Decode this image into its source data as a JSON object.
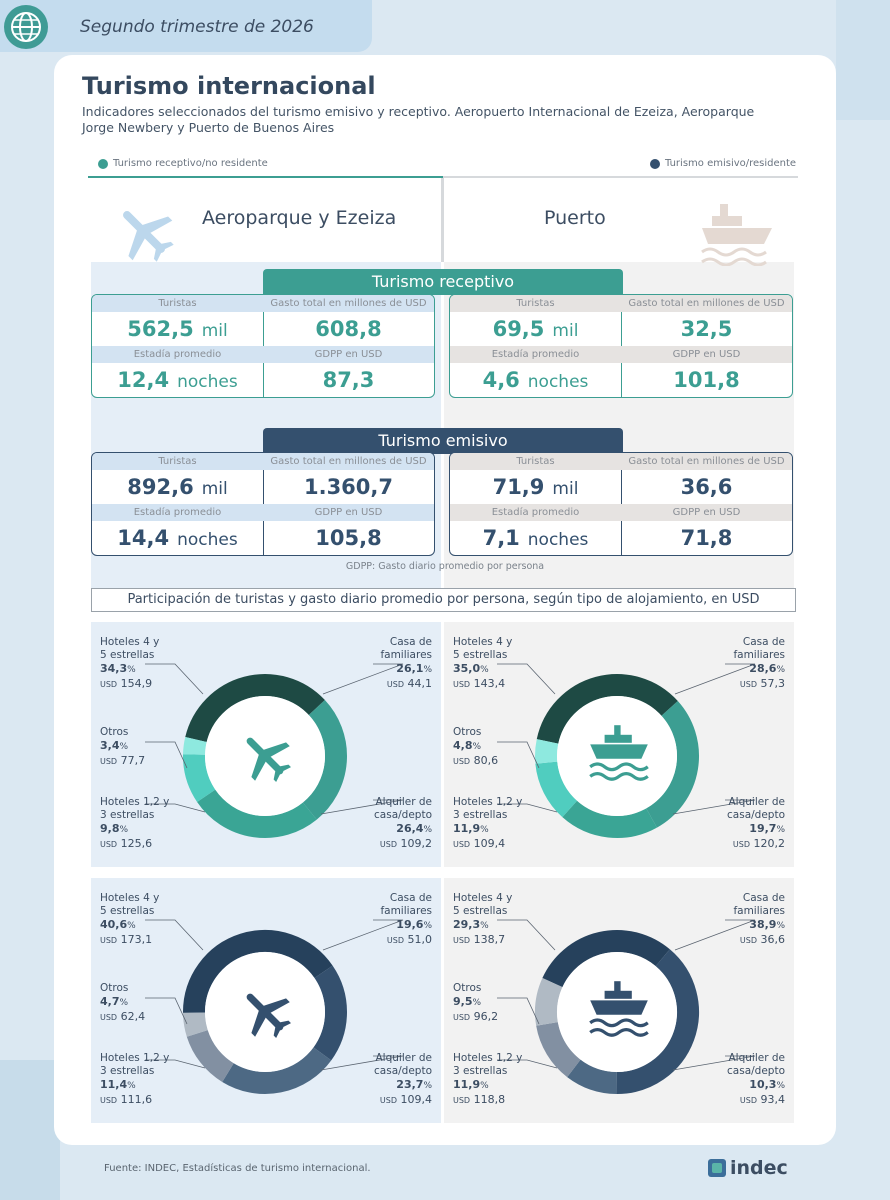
{
  "header": {
    "period": "Segundo trimestre de 2026"
  },
  "title": "Turismo internacional",
  "subtitle": "Indicadores seleccionados del turismo emisivo y receptivo. Aeropuerto Internacional de Ezeiza, Aeroparque Jorge Newbery y Puerto de Buenos Aires",
  "legend": {
    "receptivo": "Turismo receptivo/no residente",
    "emisivo": "Turismo emisivo/residente"
  },
  "colors": {
    "receptivo": "#3c9e92",
    "emisivo": "#34506e",
    "teal_light": "#5fd3c9",
    "gray": "#a7aeb6"
  },
  "locations": {
    "left": "Aeroparque y Ezeiza",
    "right": "Puerto"
  },
  "sections": {
    "receptivo": "Turismo receptivo",
    "emisivo": "Turismo emisivo"
  },
  "labels": {
    "turistas": "Turistas",
    "gasto": "Gasto total en millones de USD",
    "estadia": "Estadía promedio",
    "gdpp": "GDPP en USD",
    "mil": "mil",
    "noches": "noches"
  },
  "receptivo": {
    "aero": {
      "turistas": "562,5",
      "gasto": "608,8",
      "estadia": "12,4",
      "gdpp": "87,3"
    },
    "puerto": {
      "turistas": "69,5",
      "gasto": "32,5",
      "estadia": "4,6",
      "gdpp": "101,8"
    }
  },
  "emisivo": {
    "aero": {
      "turistas": "892,6",
      "gasto": "1.360,7",
      "estadia": "14,4",
      "gdpp": "105,8"
    },
    "puerto": {
      "turistas": "71,9",
      "gasto": "36,6",
      "estadia": "7,1",
      "gdpp": "71,8"
    }
  },
  "note": "GDPP: Gasto diario promedio por persona",
  "participation_title": "Participación de turistas y gasto diario promedio por persona, según tipo de alojamiento, en USD",
  "cat_labels": {
    "hoteles45": [
      "Hoteles 4 y",
      "5 estrellas"
    ],
    "casa_fam": [
      "Casa de",
      "familiares"
    ],
    "otros": [
      "Otros"
    ],
    "hoteles123": [
      "Hoteles 1,2 y",
      "3 estrellas"
    ],
    "alquiler": [
      "Alquiler de",
      "casa/depto"
    ]
  },
  "usd_label": "USD",
  "chart_data": [
    {
      "type": "pie",
      "title": "",
      "group": "Turismo receptivo - Aeroparque y Ezeiza",
      "categories": [
        "Hoteles 4 y 5 estrellas",
        "Casa de familiares",
        "Alquiler de casa/depto",
        "Hoteles 1,2 y 3 estrellas",
        "Otros"
      ],
      "values": [
        34.3,
        26.1,
        26.4,
        9.8,
        3.4
      ],
      "pct_text": [
        "34,3",
        "26,1",
        "26,4",
        "9,8",
        "3,4"
      ],
      "usd_text": [
        "154,9",
        "44,1",
        "109,2",
        "125,6",
        "77,7"
      ]
    },
    {
      "type": "pie",
      "title": "",
      "group": "Turismo receptivo - Puerto",
      "categories": [
        "Hoteles 4 y 5 estrellas",
        "Casa de familiares",
        "Alquiler de casa/depto",
        "Hoteles 1,2 y 3 estrellas",
        "Otros"
      ],
      "values": [
        35.0,
        28.6,
        19.7,
        11.9,
        4.8
      ],
      "pct_text": [
        "35,0",
        "28,6",
        "19,7",
        "11,9",
        "4,8"
      ],
      "usd_text": [
        "143,4",
        "57,3",
        "120,2",
        "109,4",
        "80,6"
      ]
    },
    {
      "type": "pie",
      "title": "",
      "group": "Turismo emisivo - Aeroparque y Ezeiza",
      "categories": [
        "Hoteles 4 y 5 estrellas",
        "Casa de familiares",
        "Alquiler de casa/depto",
        "Hoteles 1,2 y 3 estrellas",
        "Otros"
      ],
      "values": [
        40.6,
        19.6,
        23.7,
        11.4,
        4.7
      ],
      "pct_text": [
        "40,6",
        "19,6",
        "23,7",
        "11,4",
        "4,7"
      ],
      "usd_text": [
        "173,1",
        "51,0",
        "109,4",
        "111,6",
        "62,4"
      ]
    },
    {
      "type": "pie",
      "title": "",
      "group": "Turismo emisivo - Puerto",
      "categories": [
        "Hoteles 4 y 5 estrellas",
        "Casa de familiares",
        "Alquiler de casa/depto",
        "Hoteles 1,2 y 3 estrellas",
        "Otros"
      ],
      "values": [
        29.3,
        38.9,
        10.3,
        11.9,
        9.5
      ],
      "pct_text": [
        "29,3",
        "38,9",
        "10,3",
        "11,9",
        "9,5"
      ],
      "usd_text": [
        "138,7",
        "36,6",
        "93,4",
        "118,8",
        "96,2"
      ]
    }
  ],
  "source": "Fuente: INDEC, Estadísticas de turismo internacional.",
  "logo": "indec"
}
